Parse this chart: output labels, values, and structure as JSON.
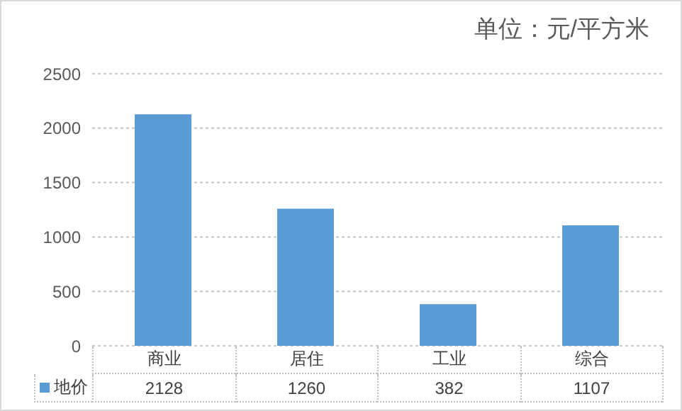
{
  "chart_data": {
    "type": "bar",
    "title": "单位：元/平方米",
    "categories": [
      "商业",
      "居住",
      "工业",
      "综合"
    ],
    "series": [
      {
        "name": "地价",
        "color": "#5b9bd5",
        "values": [
          2128,
          1260,
          382,
          1107
        ]
      }
    ],
    "ylim": [
      0,
      2500
    ],
    "yticks": [
      0,
      500,
      1000,
      1500,
      2000,
      2500
    ],
    "grid": "y",
    "legend": "bottom",
    "data_labels": true
  }
}
